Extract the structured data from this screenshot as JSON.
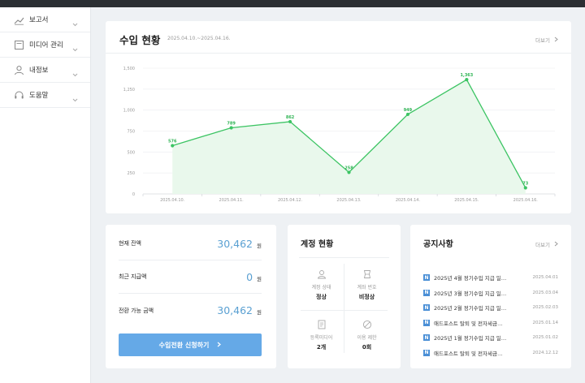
{
  "sidebar": {
    "items": [
      {
        "label": "보고서",
        "icon": "chart-line-icon"
      },
      {
        "label": "미디어 관리",
        "icon": "media-icon"
      },
      {
        "label": "내정보",
        "icon": "user-icon"
      },
      {
        "label": "도움말",
        "icon": "headset-icon"
      }
    ]
  },
  "revenue": {
    "title": "수입 현황",
    "period": "2025.04.10.~2025.04.16.",
    "more_label": "더보기"
  },
  "chart_data": {
    "type": "area",
    "categories": [
      "2025.04.10.",
      "2025.04.11.",
      "2025.04.12.",
      "2025.04.13.",
      "2025.04.14.",
      "2025.04.15.",
      "2025.04.16."
    ],
    "values": [
      576,
      789,
      862,
      258,
      949,
      1363,
      73
    ],
    "data_labels": [
      "576",
      "789",
      "862",
      "258",
      "949",
      "1,363",
      "73"
    ],
    "yticks": [
      "0",
      "250",
      "500",
      "750",
      "1,000",
      "1,250",
      "1,500"
    ],
    "ylim": [
      0,
      1500
    ],
    "grid": true,
    "line_color": "#3cc463",
    "fill_color": "#e9f8ec"
  },
  "balance": {
    "rows": [
      {
        "label": "현재 잔액",
        "value": "30,462",
        "unit": "원"
      },
      {
        "label": "최근 지급액",
        "value": "0",
        "unit": "원"
      },
      {
        "label": "전환 가능 금액",
        "value": "30,462",
        "unit": "원"
      }
    ],
    "apply_label": "수입전환 신청하기",
    "accent": "#65a9e7"
  },
  "account": {
    "title": "계정 현황",
    "cells": [
      {
        "label": "계정 상태",
        "value": "정상",
        "icon": "user-outline-icon"
      },
      {
        "label": "계좌 번호",
        "value": "비정상",
        "icon": "card-icon"
      },
      {
        "label": "등록미디어",
        "value": "2개",
        "icon": "document-icon"
      },
      {
        "label": "이용 제한",
        "value": "0회",
        "icon": "ban-icon"
      }
    ]
  },
  "notices": {
    "title": "공지사항",
    "more_label": "더보기",
    "badge": "N",
    "items": [
      {
        "title": "2025년 4월 정기수입 지급 일…",
        "date": "2025.04.01"
      },
      {
        "title": "2025년 3월 정기수입 지급 일…",
        "date": "2025.03.04"
      },
      {
        "title": "2025년 2월 정기수입 지급 일…",
        "date": "2025.02.03"
      },
      {
        "title": "애드포스트 탈퇴 및 전자세금…",
        "date": "2025.01.14"
      },
      {
        "title": "2025년 1월 정기수입 지급 일…",
        "date": "2025.01.02"
      },
      {
        "title": "애드포스트 탈퇴 및 전자세금…",
        "date": "2024.12.12"
      }
    ]
  }
}
